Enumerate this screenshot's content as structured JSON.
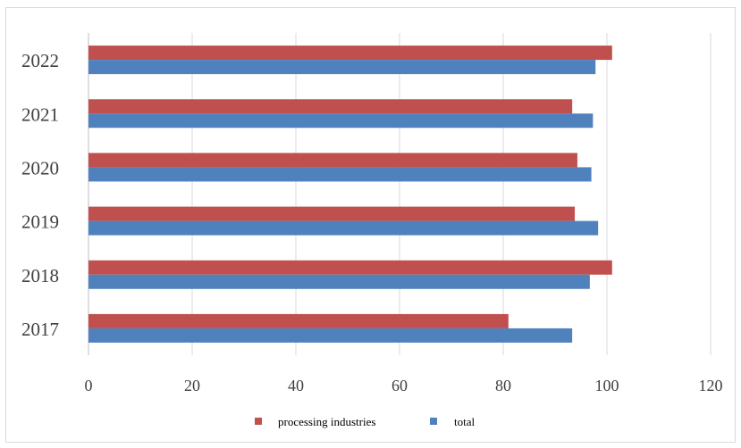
{
  "chart_data": {
    "type": "bar",
    "orientation": "horizontal",
    "categories": [
      "2017",
      "2018",
      "2019",
      "2020",
      "2021",
      "2022"
    ],
    "series": [
      {
        "name": "processing industries",
        "color": "#c0504d",
        "values": [
          81.0,
          101.0,
          93.8,
          94.3,
          93.3,
          101.0
        ]
      },
      {
        "name": "total",
        "color": "#4f81bd",
        "values": [
          93.3,
          96.7,
          98.3,
          97.0,
          97.3,
          97.8
        ]
      }
    ],
    "xlim": [
      0,
      120
    ],
    "xticks": [
      0,
      20,
      40,
      60,
      80,
      100,
      120
    ],
    "grid": "vertical",
    "legend_position": "bottom",
    "title": "",
    "xlabel": "",
    "ylabel": ""
  }
}
